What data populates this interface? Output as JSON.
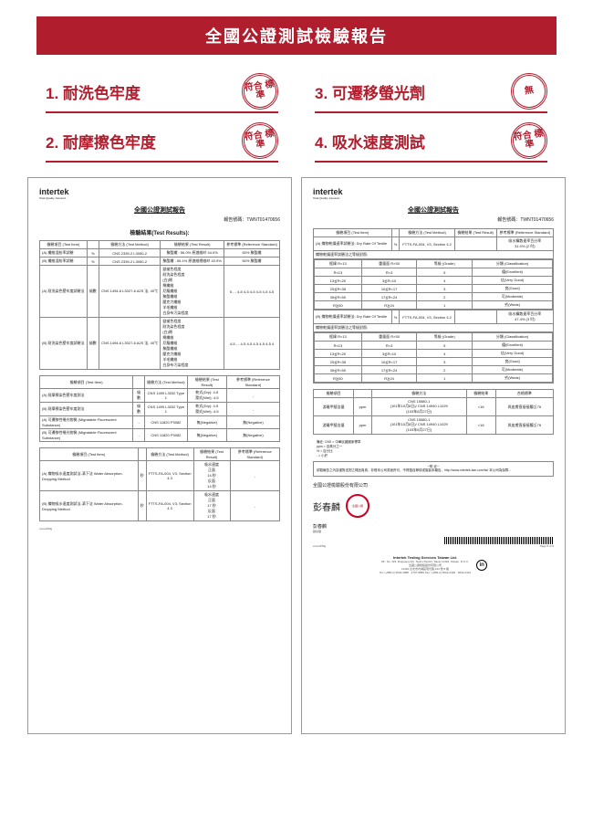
{
  "header": {
    "title": "全國公證測試檢驗報告"
  },
  "tests": [
    {
      "label": "1. 耐洗色牢度",
      "stamp": "符合\n標準"
    },
    {
      "label": "3. 可遷移螢光劑",
      "stamp": "無"
    },
    {
      "label": "2. 耐摩擦色牢度",
      "stamp": "符合\n標準"
    },
    {
      "label": "4. 吸水速度測試",
      "stamp": "符合\n標準"
    }
  ],
  "report_shared": {
    "brand": "intertek",
    "brand_sub": "Total Quality. Assured.",
    "title": "全國公證測試報告",
    "no_label": "報告號碼：",
    "no": "TWNT01470656"
  },
  "report1": {
    "section_title": "檢驗結果(Test Results):",
    "tbl_a_head": [
      "檢驗項目\n(Test Item)",
      "",
      "檢驗方法\n(Test Method)",
      "檢驗結果\n(Test Result)",
      "參考標準\n(Reference Standard)"
    ],
    "tbl_a": [
      [
        "(A)\n纖維混紡率試驗",
        "%",
        "CNS 2339-2 L3050-2",
        "聚酯纖 : 56.0%\n原激維紗 44.0%",
        "50% 聚酯纖"
      ],
      [
        "(B)\n纖維混紡率試驗",
        "%",
        "CNS 2339-2 L3050-2",
        "聚酯纖 : 56.1%\n原激維總維紗 43.9%",
        "50% 聚酯纖"
      ],
      [
        "(A)\n耐洗染色堅牢度試驗法",
        "級數",
        "CNS 1494-6 L3027-6\nA2S 法, 40℃",
        "變褪色程度\n耐洗染色程度\n(白)棉\n棉纖維\n尼龍纖維\n聚酯纖維\n壓克力纖維\n羊毛纖維\n白身布污染程度",
        "5\n-\n-\n4-5\n4-5\n4-5\n4-5\n4-5\n4-5",
        "-"
      ],
      [
        "(B)\n耐洗染色堅牢度試驗法",
        "級數",
        "CNS 1494-6 L3027-6\nA2S 法, 40℃",
        "變褪色程度\n耐洗染色程度\n(白)棉\n棉纖維\n尼龍纖維\n聚酯纖維\n壓克力纖維\n羊毛纖維\n白身布污染程度",
        "4-5\n-\n-\n4-5\n4-5\n4-5\n4-5\n4-5\n4",
        "-"
      ]
    ],
    "tbl_b_head": [
      "檢驗項目\n(Test Item)",
      "",
      "檢驗方法\n(Test Method)",
      "檢驗結果\n(Test Result)",
      "參考標準\n(Reference Standard)"
    ],
    "tbl_b": [
      [
        "(A)\n耐摩擦染色堅牢度測法",
        "級數",
        "CNS 1499 L3032  Type 1",
        "乾式(Dry):  4-5\n濕式(Wet):  4-5",
        "-"
      ],
      [
        "(B)\n耐摩擦染色堅牢度測法",
        "級數",
        "CNS 1499 L3032  Type 1",
        "乾式(Dry):  4-5\n濕式(Wet):  4-5",
        "-"
      ],
      [
        "(A)\n可遷移性螢光物質\n(Migratable Fluorescent Substance)",
        "-",
        "CNS 11820 P3082",
        "無(Negative)",
        "無(Negative)"
      ],
      [
        "(B)\n可遷移性螢光物質\n(Migratable Fluorescent Substance)",
        "-",
        "CNS 11820 P3082",
        "無(Negative)",
        "無(Negative)"
      ]
    ],
    "tbl_c_head": [
      "檢驗項目\n(Test Item)",
      "",
      "檢驗方法\n(Test Method)",
      "檢驗結果\n(Test Result)",
      "參考標準\n(Reference Standard)"
    ],
    "tbl_c": [
      [
        "(A)\n織物吸水速度測試法-滴下法\nWater Absorption-Dropping Method",
        "秒",
        "FTTS-FA-004, V3, Section 4.3",
        "吸水速度\n正面\n14 秒\n反面\n14 秒",
        "-"
      ],
      [
        "(B)\n織物吸水速度測試法-滴下法\nWater Absorption-Dropping Method",
        "秒",
        "FTTS-FA-004, V3, Section 4.3",
        "吸水速度\n正面\n17 秒\n反面\n17 秒",
        "-"
      ]
    ],
    "pagefoot": "xxxxx3/5fg"
  },
  "report2": {
    "tbl_d_head": [
      "檢驗項目\n(Test Item)",
      "",
      "檢驗方法\n(Test Method)",
      "檢驗結果\n(Test Result)",
      "參考標準\n(Reference Standard)"
    ],
    "tbl_d_row1": [
      "(A)\n織物乾燥速率試驗法:\nDry Rate Of Textile",
      "%",
      "FTTS-FA-004, V3, Section 4.2",
      "",
      "吸水擴散速率百分率\n31.0% (2 吋)"
    ],
    "tbl_d_sub_head": [
      "",
      "織物乾燥速率試驗法之等級對照:",
      ""
    ],
    "tbl_d_sub_cols": [
      "經緯\nR×13",
      "重量面\nR×50",
      "等級 (Grade)",
      "分類 (Classification)"
    ],
    "tbl_d_sub": [
      [
        "R×13",
        "R<3",
        "5",
        "優(Excellent)"
      ],
      [
        "13≦R<20",
        "3≦R<10",
        "4",
        "佳(Very Good)"
      ],
      [
        "20≦R<35",
        "10≦R<17",
        "3",
        "良(Good)"
      ],
      [
        "35≦R<50",
        "17≦R<24",
        "2",
        "可(Moderate)"
      ],
      [
        "R≧50",
        "R≧24",
        "1",
        "劣(Weak)"
      ]
    ],
    "tbl_d_row2": [
      "(B)\n織物乾燥速率試驗法:\nDry Rate Of Textile",
      "%",
      "FTTS-FA-004, V3, Section 4.2",
      "",
      "吸水擴散速率百分率\n47.4% (3 吋)"
    ],
    "tbl_e_head": [
      "檢驗項目",
      "",
      "檢驗方法",
      "檢驗結果",
      "合格標準"
    ],
    "tbl_e": [
      [
        "游離甲醛含量",
        "ppm",
        "CNS 15580-1\n(101年10月8日)/ CNS 14940 L1029\n(103年6月27日)",
        "<16",
        "與皮膚直接接觸≦75"
      ],
      [
        "游離甲醛含量",
        "ppm",
        "CNS 15580-1\n(101年10月8日)/ CNS 14940 L1029\n(103年6月27日)",
        "<16",
        "與皮膚直接接觸≦75"
      ]
    ],
    "notes": "備註: CNS = 中華民國國家標準\n     ppm = 百萬分之一\n     % = 百分比\n     - = 小於",
    "remark_title": "─附 註─",
    "remark": "試驗報告之內容僅對送測之樣品負責，非經本公司書面許可，不得擅自節錄或複製本報告。http://www.intertek-twn.com/tw/ 本公司為保障...",
    "company": "全國公證檢驗股份有限公司",
    "sig": "彭春麟",
    "sig_seal": "全國公證",
    "sig_name_label": "彭春麟",
    "sig_role": "副協理",
    "page": "Page 5 of 6",
    "footer_company": "Intertek Testing Services Taiwan Ltd.",
    "footer_addr": "8F., No. 423, Ruiguang Rd., Neihu District, Taipei 11492, Taiwan, R.O.C.\n全國公證檢驗股份有限公司\n11492 台北市內湖區瑞光路 423 號 8 樓\nTel: (+886-2) 6602-2888 · 2797-8885  Fax: (+886-2) 6602-2400 · 6602-2401"
  }
}
